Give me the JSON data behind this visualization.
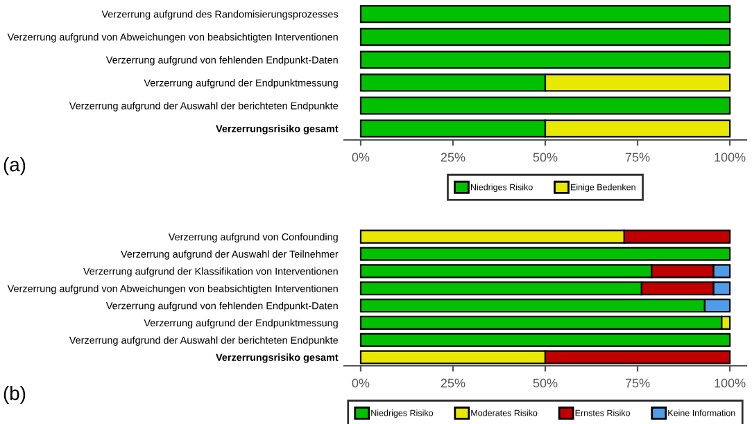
{
  "chart_data": [
    {
      "type": "bar",
      "orientation": "horizontal",
      "stacked": true,
      "categories": [
        "Verzerrung aufgrund des Randomisierungsprozesses",
        "Verzerrung aufgrund von Abweichungen von beabsichtigten Interventionen",
        "Verzerrung aufgrund von fehlenden Endpunkt-Daten",
        "Verzerrung aufgrund der Endpunktmessung",
        "Verzerrung aufgrund der Auswahl der berichteten Endpunkte",
        "Verzerrungsrisiko gesamt"
      ],
      "series": [
        {
          "name": "Niedriges Risiko",
          "color": "#00c000",
          "values": [
            100,
            100,
            100,
            50,
            100,
            50
          ]
        },
        {
          "name": "Einige Bedenken",
          "color": "#e8e800",
          "values": [
            null,
            null,
            null,
            50,
            null,
            50
          ]
        }
      ],
      "xlim": [
        -4.5,
        104.5
      ],
      "xticks": [
        {
          "value": 0,
          "label": "0%"
        },
        {
          "value": 25,
          "label": "25%"
        },
        {
          "value": 50,
          "label": "50%"
        },
        {
          "value": 75,
          "label": "75%"
        },
        {
          "value": 100,
          "label": "100%"
        }
      ],
      "grid": false,
      "legend": "bottom",
      "annotations": [
        "(a)"
      ]
    },
    {
      "type": "bar",
      "orientation": "horizontal",
      "stacked": true,
      "categories": [
        "Verzerrung aufgrund von Confounding",
        "Verzerrung aufgrund der Auswahl der Teilnehmer",
        "Verzerrung aufgrund der Klassifikation von Interventionen",
        "Verzerrung aufgrund von Abweichungen von beabsichtigten Interventionen",
        "Verzerrung aufgrund von fehlenden Endpunkt-Daten",
        "Verzerrung aufgrund der Endpunktmessung",
        "Verzerrung aufgrund der Auswahl der berichteten Endpunkte",
        "Verzerrungsrisiko gesamt"
      ],
      "series": [
        {
          "name": "Niedriges Risiko",
          "color": "#00c000",
          "values": [
            null,
            100,
            78.8,
            76.1,
            93.2,
            97.8,
            100,
            null
          ]
        },
        {
          "name": "Moderates Risiko",
          "color": "#e8e800",
          "values": [
            71.4,
            null,
            null,
            null,
            null,
            2.2,
            null,
            50
          ]
        },
        {
          "name": "Ernstes Risiko",
          "color": "#c00000",
          "values": [
            28.6,
            null,
            16.8,
            19.5,
            null,
            null,
            null,
            50
          ]
        },
        {
          "name": "Keine Information",
          "color": "#4f9de8",
          "values": [
            null,
            null,
            4.4,
            4.4,
            6.8,
            null,
            null,
            null
          ]
        }
      ],
      "xlim": [
        -4.5,
        104.5
      ],
      "xticks": [
        {
          "value": 0,
          "label": "0%"
        },
        {
          "value": 25,
          "label": "25%"
        },
        {
          "value": 50,
          "label": "50%"
        },
        {
          "value": 75,
          "label": "75%"
        },
        {
          "value": 100,
          "label": "100%"
        }
      ],
      "grid": false,
      "legend": "bottom",
      "annotations": [
        "(b)"
      ]
    }
  ]
}
